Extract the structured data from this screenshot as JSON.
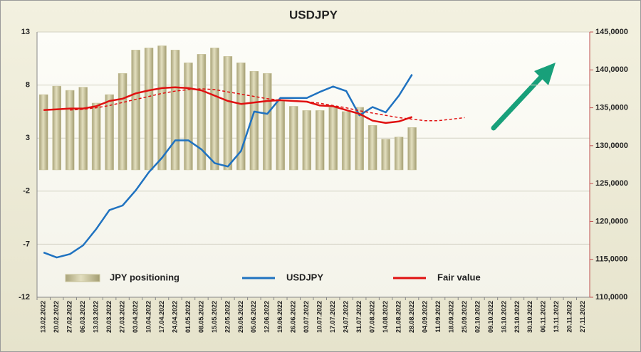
{
  "chart_data": {
    "type": "combo",
    "title": "USDJPY",
    "categories": [
      "13.02.2022",
      "20.02.2022",
      "27.02.2022",
      "06.03.2022",
      "13.03.2022",
      "20.03.2022",
      "27.03.2022",
      "03.04.2022",
      "10.04.2022",
      "17.04.2022",
      "24.04.2022",
      "01.05.2022",
      "08.05.2022",
      "15.05.2022",
      "22.05.2022",
      "29.05.2022",
      "05.06.2022",
      "12.06.2022",
      "19.06.2022",
      "26.06.2022",
      "03.07.2022",
      "10.07.2022",
      "17.07.2022",
      "24.07.2022",
      "31.07.2022",
      "07.08.2022",
      "14.08.2022",
      "21.08.2022",
      "28.08.2022",
      "04.09.2022",
      "11.09.2022",
      "18.09.2022",
      "25.09.2022",
      "02.10.2022",
      "09.10.2022",
      "16.10.2022",
      "23.10.2022",
      "30.10.2022",
      "06.11.2022",
      "13.11.2022",
      "20.11.2022",
      "27.11.2022"
    ],
    "ylim": [
      -12,
      13
    ],
    "yticks": [
      13,
      8,
      3,
      -2,
      -7,
      -12
    ],
    "y2lim": [
      110000,
      145000
    ],
    "y2ticks": [
      {
        "value": 145000,
        "label": "145,0000"
      },
      {
        "value": 140000,
        "label": "140,0000"
      },
      {
        "value": 135000,
        "label": "135,0000"
      },
      {
        "value": 130000,
        "label": "130,0000"
      },
      {
        "value": 125000,
        "label": "125,0000"
      },
      {
        "value": 120000,
        "label": "120,0000"
      },
      {
        "value": 115000,
        "label": "115,0000"
      },
      {
        "value": 110000,
        "label": "110,0000"
      }
    ],
    "grid": true,
    "series": [
      {
        "name": "JPY positioning",
        "kind": "bar",
        "color": "#c8c399",
        "values": [
          7.1,
          7.9,
          7.5,
          7.8,
          6.3,
          7.1,
          9.1,
          11.3,
          11.5,
          11.7,
          11.3,
          10.1,
          10.9,
          11.5,
          10.7,
          10.1,
          9.3,
          9.1,
          6.6,
          6.0,
          5.6,
          5.6,
          5.9,
          5.5,
          5.9,
          4.2,
          2.9,
          3.1,
          4.0,
          null,
          null,
          null,
          null,
          null,
          null,
          null,
          null,
          null,
          null,
          null,
          null,
          null
        ]
      },
      {
        "name": "USDJPY",
        "kind": "line",
        "axis": "y2",
        "color": "#1f72c0",
        "values": [
          115900,
          115250,
          115700,
          116850,
          119000,
          121500,
          122100,
          124100,
          126500,
          128400,
          130700,
          130700,
          129500,
          127700,
          127250,
          129300,
          134500,
          134200,
          136300,
          136300,
          136300,
          137100,
          137800,
          137200,
          134000,
          135100,
          134400,
          136600,
          139400,
          null,
          null,
          null,
          null,
          null,
          null,
          null,
          null,
          null,
          null,
          null,
          null,
          null
        ]
      },
      {
        "name": "Fair value",
        "kind": "line",
        "axis": "y2",
        "color": "#e01010",
        "values": [
          134700,
          134800,
          134900,
          134900,
          135200,
          135900,
          136200,
          136900,
          137300,
          137600,
          137700,
          137600,
          137300,
          136600,
          135900,
          135500,
          135700,
          135900,
          136000,
          135900,
          135800,
          135300,
          135200,
          134700,
          134200,
          133300,
          133000,
          133200,
          133800,
          null,
          null,
          null,
          null,
          null,
          null,
          null,
          null,
          null,
          null,
          null,
          null,
          null
        ]
      },
      {
        "kind": "line",
        "style": "dashed",
        "axis": "y2",
        "color": "#e01010",
        "values": [
          null,
          null,
          134700,
          134800,
          135000,
          135300,
          135700,
          136100,
          136500,
          136900,
          137200,
          137400,
          137500,
          137400,
          137100,
          136800,
          136500,
          136200,
          136000,
          135900,
          135800,
          135600,
          135300,
          135000,
          134600,
          134300,
          134000,
          133700,
          133500,
          133300,
          133300,
          133500,
          133700,
          null,
          null,
          null,
          null,
          null,
          null,
          null,
          null,
          null
        ]
      }
    ]
  }
}
